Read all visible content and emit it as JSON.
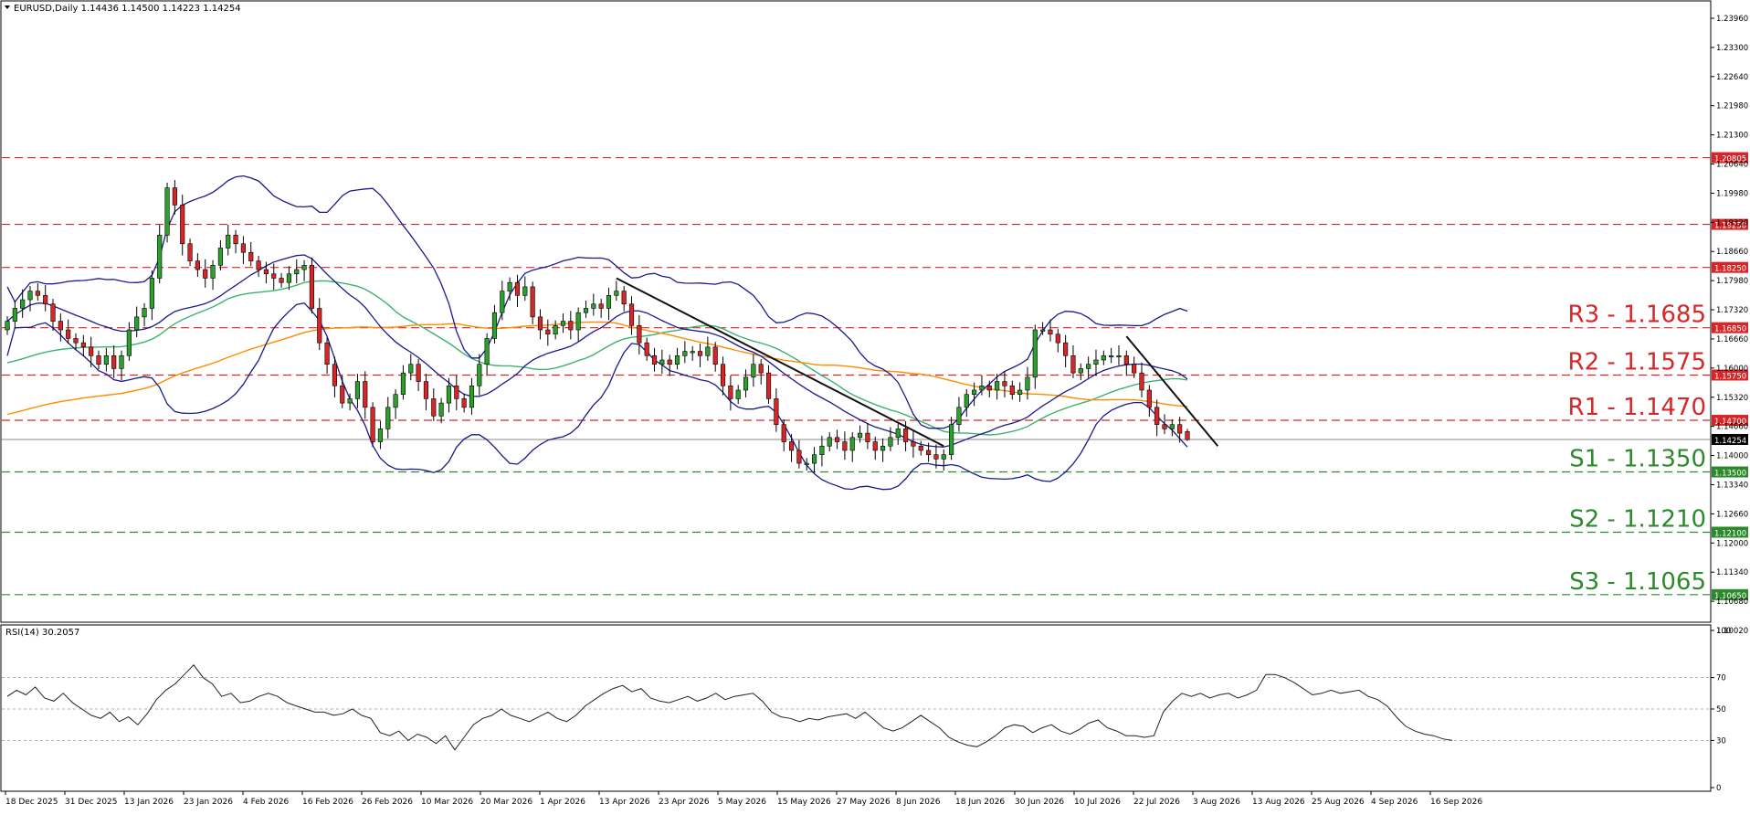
{
  "header": {
    "symbol_line": "EURUSD,Daily  1.14436 1.14500 1.14223 1.14254",
    "triangle": "triangle-down-icon"
  },
  "rsi_header": "RSI(14) 30.2057",
  "colors": {
    "resistance": "#d62728",
    "support": "#2c8a2c",
    "bull": "#2ca02c",
    "bear": "#d62728",
    "bollinger": "#1a1a8c",
    "ma_green": "#3cb371",
    "ma_orange": "#ff8c00",
    "trendline": "#111111",
    "rsi_line": "#222222"
  },
  "chart_data": {
    "type": "candlestick",
    "symbol": "EURUSD",
    "timeframe": "Daily",
    "last": {
      "open": 1.14436,
      "high": 1.145,
      "low": 1.14223,
      "close": 1.14254
    },
    "ylim": [
      1.1003,
      1.2425
    ],
    "y_ticks": [
      "1.23960",
      "1.23300",
      "1.22640",
      "1.21980",
      "1.21300",
      "1.20640",
      "1.19980",
      "1.19320",
      "1.18660",
      "1.17980",
      "1.17320",
      "1.16660",
      "1.16000",
      "1.15320",
      "1.14660",
      "1.14000",
      "1.13340",
      "1.12660",
      "1.12000",
      "1.11340",
      "1.10680",
      "1.10020"
    ],
    "x_ticks": [
      "18 Dec 2025",
      "31 Dec 2025",
      "13 Jan 2026",
      "23 Jan 2026",
      "4 Feb 2026",
      "16 Feb 2026",
      "26 Feb 2026",
      "10 Mar 2026",
      "20 Mar 2026",
      "1 Apr 2026",
      "13 Apr 2026",
      "23 Apr 2026",
      "5 May 2026",
      "15 May 2026",
      "27 May 2026",
      "8 Jun 2026",
      "18 Jun 2026",
      "30 Jun 2026",
      "10 Jul 2026",
      "22 Jul 2026",
      "3 Aug 2026",
      "13 Aug 2026",
      "25 Aug 2026",
      "4 Sep 2026",
      "16 Sep 2026"
    ],
    "levels": [
      {
        "kind": "resistance",
        "value": 1.208,
        "tag": "1.20805",
        "label": ""
      },
      {
        "kind": "resistance",
        "value": 1.1925,
        "tag": "1.19250",
        "label": ""
      },
      {
        "kind": "resistance",
        "value": 1.1825,
        "tag": "1.18250",
        "label": ""
      },
      {
        "kind": "resistance",
        "value": 1.1685,
        "tag": "1.16850",
        "label": "R3 - 1.1685"
      },
      {
        "kind": "resistance",
        "value": 1.1575,
        "tag": "1.15750",
        "label": "R2 - 1.1575"
      },
      {
        "kind": "resistance",
        "value": 1.147,
        "tag": "1.14700",
        "label": "R1 - 1.1470"
      },
      {
        "kind": "support",
        "value": 1.135,
        "tag": "1.13500",
        "label": "S1 - 1.1350"
      },
      {
        "kind": "support",
        "value": 1.121,
        "tag": "1.12100",
        "label": "S2 - 1.1210"
      },
      {
        "kind": "support",
        "value": 1.1065,
        "tag": "1.10650",
        "label": "S3 - 1.1065"
      }
    ],
    "current_price_tag": "1.14254",
    "close_series": [
      1.17,
      1.173,
      1.175,
      1.177,
      1.176,
      1.174,
      1.17,
      1.168,
      1.166,
      1.165,
      1.164,
      1.162,
      1.16,
      1.162,
      1.159,
      1.162,
      1.168,
      1.171,
      1.173,
      1.18,
      1.19,
      1.201,
      1.197,
      1.188,
      1.184,
      1.182,
      1.18,
      1.183,
      1.187,
      1.19,
      1.188,
      1.186,
      1.184,
      1.182,
      1.181,
      1.18,
      1.179,
      1.181,
      1.182,
      1.183,
      1.173,
      1.165,
      1.16,
      1.155,
      1.151,
      1.152,
      1.156,
      1.15,
      1.142,
      1.145,
      1.15,
      1.153,
      1.158,
      1.16,
      1.156,
      1.152,
      1.148,
      1.151,
      1.155,
      1.152,
      1.15,
      1.155,
      1.16,
      1.166,
      1.172,
      1.177,
      1.179,
      1.176,
      1.178,
      1.171,
      1.168,
      1.167,
      1.169,
      1.17,
      1.168,
      1.172,
      1.173,
      1.174,
      1.173,
      1.176,
      1.177,
      1.174,
      1.169,
      1.165,
      1.162,
      1.16,
      1.161,
      1.16,
      1.162,
      1.163,
      1.163,
      1.162,
      1.164,
      1.16,
      1.155,
      1.152,
      1.154,
      1.157,
      1.16,
      1.158,
      1.152,
      1.146,
      1.142,
      1.14,
      1.137,
      1.137,
      1.139,
      1.141,
      1.143,
      1.142,
      1.14,
      1.143,
      1.144,
      1.142,
      1.14,
      1.141,
      1.143,
      1.145,
      1.142,
      1.141,
      1.14,
      1.139,
      1.138,
      1.139,
      1.146,
      1.15,
      1.153,
      1.154,
      1.155,
      1.154,
      1.156,
      1.155,
      1.153,
      1.154,
      1.157,
      1.168,
      1.168,
      1.167,
      1.165,
      1.162,
      1.158,
      1.159,
      1.16,
      1.161,
      1.162,
      1.162,
      1.162,
      1.16,
      1.158,
      1.154,
      1.15,
      1.146,
      1.145,
      1.146,
      1.144,
      1.1425
    ],
    "rsi": {
      "period": 14,
      "value": 30.2057,
      "ylim": [
        0,
        100
      ],
      "levels": [
        30,
        50,
        70
      ],
      "ticks": [
        "100",
        "70",
        "50",
        "30",
        "0"
      ],
      "values": [
        58,
        62,
        59,
        64,
        57,
        55,
        60,
        54,
        50,
        46,
        44,
        48,
        42,
        45,
        40,
        47,
        56,
        62,
        66,
        72,
        78,
        70,
        66,
        58,
        60,
        54,
        55,
        58,
        60,
        58,
        54,
        52,
        50,
        48,
        48,
        46,
        47,
        50,
        46,
        44,
        35,
        33,
        36,
        30,
        34,
        32,
        28,
        33,
        24,
        32,
        40,
        44,
        46,
        50,
        46,
        44,
        42,
        45,
        48,
        44,
        42,
        46,
        52,
        56,
        60,
        63,
        65,
        61,
        63,
        57,
        55,
        54,
        56,
        58,
        55,
        57,
        60,
        56,
        58,
        59,
        60,
        55,
        48,
        45,
        44,
        42,
        44,
        43,
        45,
        46,
        47,
        44,
        48,
        43,
        38,
        36,
        38,
        42,
        46,
        42,
        38,
        32,
        29,
        27,
        26,
        29,
        33,
        38,
        40,
        39,
        35,
        38,
        40,
        36,
        34,
        37,
        41,
        43,
        38,
        36,
        33,
        33,
        32,
        33,
        48,
        55,
        60,
        58,
        60,
        57,
        59,
        60,
        57,
        59,
        62,
        72,
        72,
        70,
        67,
        63,
        59,
        60,
        62,
        60,
        61,
        62,
        58,
        56,
        52,
        45,
        39,
        36,
        34,
        33,
        31,
        30
      ]
    }
  }
}
